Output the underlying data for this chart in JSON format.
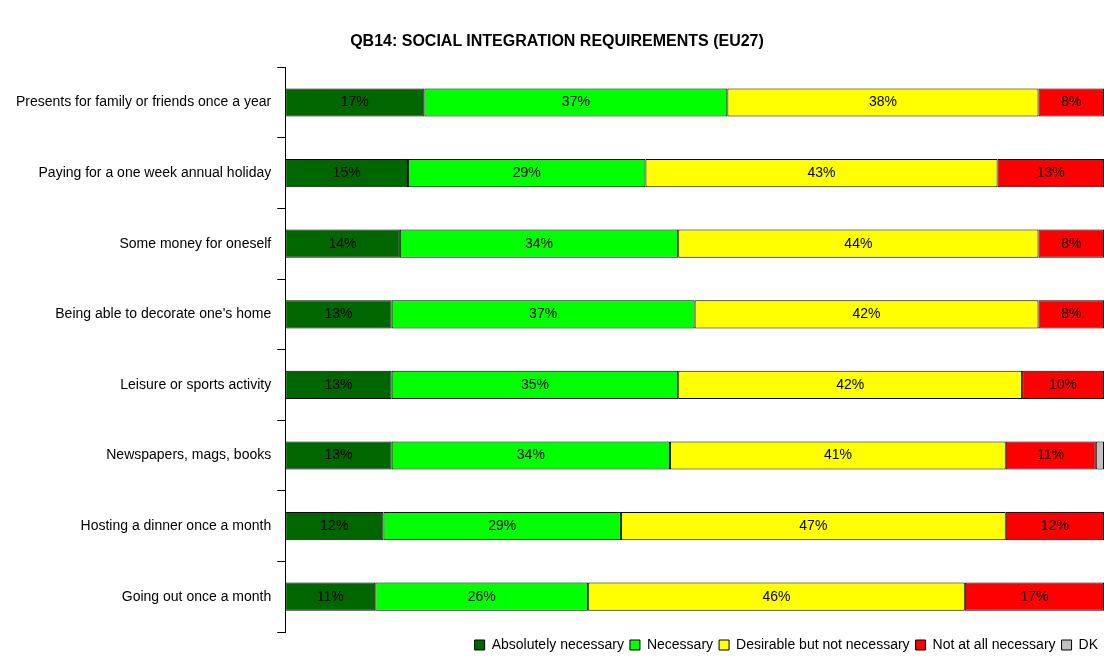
{
  "chart_data": {
    "type": "bar",
    "orientation": "horizontal",
    "stacked": true,
    "title": "QB14: SOCIAL INTEGRATION REQUIREMENTS (EU27)",
    "categories": [
      "Presents for family or friends once a year",
      "Paying for a one week annual holiday",
      "Some money for oneself",
      "Being able to decorate one's home",
      "Leisure or sports activity",
      "Newspapers, mags, books",
      "Hosting a dinner once a month",
      "Going out once a month"
    ],
    "series": [
      {
        "name": "Absolutely necessary",
        "color": "#006600",
        "values": [
          17,
          15,
          14,
          13,
          13,
          13,
          12,
          11
        ],
        "value_labels": [
          "17%",
          "15%",
          "14%",
          "13%",
          "13%",
          "13%",
          "12%",
          "11%"
        ]
      },
      {
        "name": "Necessary",
        "color": "#00ff00",
        "values": [
          37,
          29,
          34,
          37,
          35,
          34,
          29,
          26
        ],
        "value_labels": [
          "37%",
          "29%",
          "34%",
          "37%",
          "35%",
          "34%",
          "29%",
          "26%"
        ]
      },
      {
        "name": "Desirable but not necessary",
        "color": "#ffff00",
        "values": [
          38,
          43,
          44,
          42,
          42,
          41,
          47,
          46
        ],
        "value_labels": [
          "38%",
          "43%",
          "44%",
          "42%",
          "42%",
          "41%",
          "47%",
          "46%"
        ]
      },
      {
        "name": "Not at all necessary",
        "color": "#ff0000",
        "values": [
          8,
          13,
          8,
          8,
          10,
          11,
          12,
          17
        ],
        "value_labels": [
          "8%",
          "13%",
          "8%",
          "8%",
          "10%",
          "11%",
          "12%",
          "17%"
        ]
      },
      {
        "name": "DK",
        "color": "#c0c0c0",
        "values": [
          0,
          0,
          0,
          0,
          0,
          1,
          0,
          0
        ],
        "value_labels": [
          null,
          null,
          null,
          null,
          null,
          null,
          null,
          null
        ]
      }
    ],
    "legend": "bottom",
    "tick_labels": "y"
  }
}
